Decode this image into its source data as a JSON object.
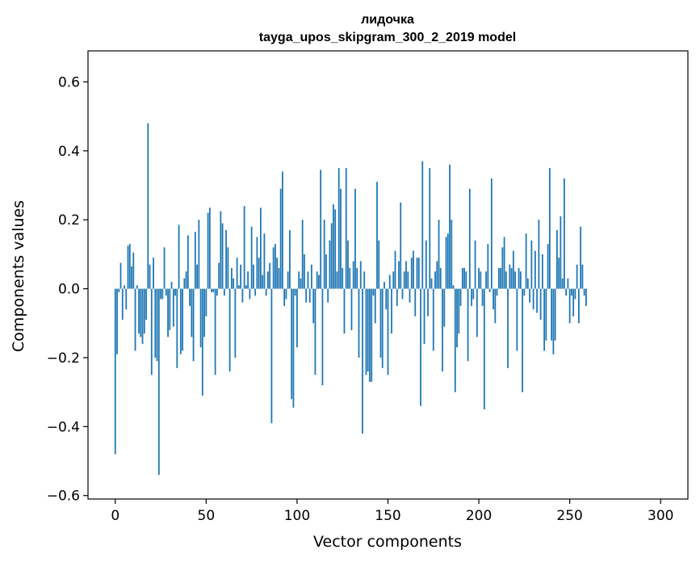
{
  "chart_data": {
    "type": "bar",
    "title_lines": [
      "лидочка",
      "tayga_upos_skipgram_300_2_2019 model"
    ],
    "xlabel": "Vector components",
    "ylabel": "Components values",
    "xlim": [
      -15,
      315
    ],
    "ylim": [
      -0.61,
      0.69
    ],
    "xticks": [
      0,
      50,
      100,
      150,
      200,
      250,
      300
    ],
    "xtick_labels": [
      "0",
      "50",
      "100",
      "150",
      "200",
      "250",
      "300"
    ],
    "yticks": [
      -0.6,
      -0.4,
      -0.2,
      0.0,
      0.2,
      0.4,
      0.6
    ],
    "ytick_labels": [
      "−0.6",
      "−0.4",
      "−0.2",
      "0.0",
      "0.2",
      "0.4",
      "0.6"
    ],
    "bar_color": "#1f77b4",
    "grid": false,
    "values": [
      -0.48,
      -0.19,
      -0.01,
      0.075,
      -0.09,
      0.01,
      -0.06,
      0.125,
      0.13,
      0.065,
      0.105,
      -0.18,
      0.01,
      -0.13,
      -0.14,
      -0.16,
      -0.13,
      -0.09,
      0.48,
      0.07,
      -0.25,
      0.09,
      -0.2,
      -0.21,
      -0.54,
      -0.03,
      -0.03,
      0.12,
      -0.02,
      -0.14,
      -0.12,
      0.02,
      -0.11,
      -0.02,
      -0.23,
      0.185,
      -0.19,
      -0.18,
      0.03,
      0.05,
      0.155,
      -0.05,
      -0.14,
      -0.21,
      0.165,
      0.07,
      0.2,
      -0.17,
      -0.31,
      -0.14,
      -0.08,
      0.22,
      0.235,
      -0.01,
      -0.01,
      -0.25,
      -0.02,
      0.075,
      0.225,
      0.19,
      -0.02,
      0.17,
      0.12,
      -0.24,
      0.06,
      0.03,
      -0.2,
      0.09,
      0.01,
      0.07,
      -0.04,
      0.24,
      0.01,
      0.05,
      -0.03,
      0.18,
      0.07,
      -0.02,
      0.15,
      0.09,
      0.235,
      0.04,
      0.16,
      -0.02,
      0.05,
      0.075,
      -0.39,
      0.12,
      0.13,
      0.09,
      0.06,
      0.29,
      0.34,
      -0.05,
      -0.03,
      0.05,
      0.17,
      -0.32,
      -0.345,
      -0.02,
      -0.17,
      0.05,
      0.03,
      0.2,
      0.1,
      -0.04,
      0.05,
      -0.04,
      0.07,
      -0.1,
      -0.25,
      0.05,
      0.04,
      0.345,
      -0.28,
      0.2,
      0.1,
      -0.04,
      0.14,
      0.19,
      0.245,
      0.23,
      0.05,
      0.35,
      0.29,
      0.06,
      -0.13,
      0.35,
      0.14,
      0.06,
      -0.12,
      0.08,
      0.29,
      0.06,
      -0.2,
      0.08,
      -0.42,
      0.05,
      -0.25,
      -0.24,
      -0.27,
      -0.27,
      -0.02,
      -0.1,
      0.31,
      0.14,
      -0.2,
      -0.23,
      0.02,
      -0.06,
      -0.25,
      0.04,
      -0.13,
      0.05,
      0.11,
      -0.05,
      0.08,
      0.25,
      -0.03,
      0.05,
      0.08,
      0.05,
      -0.04,
      0.09,
      0.11,
      -0.08,
      0.09,
      0.09,
      -0.34,
      0.37,
      -0.16,
      0.14,
      -0.08,
      0.35,
      0.03,
      -0.18,
      0.05,
      0.08,
      0.2,
      0.06,
      -0.24,
      -0.11,
      0.15,
      0.16,
      0.36,
      0.2,
      0.01,
      -0.3,
      -0.17,
      -0.13,
      -0.05,
      0.06,
      0.06,
      0.05,
      -0.21,
      0.29,
      -0.05,
      -0.03,
      0.14,
      -0.14,
      0.06,
      0.05,
      -0.05,
      -0.35,
      0.05,
      0.13,
      -0.01,
      0.32,
      -0.06,
      -0.1,
      -0.02,
      0.06,
      0.06,
      0.12,
      0.15,
      0.05,
      -0.23,
      0.07,
      0.06,
      0.11,
      0.05,
      -0.18,
      0.06,
      0.05,
      -0.3,
      -0.02,
      0.16,
      0.03,
      -0.04,
      0.14,
      -0.06,
      0.11,
      -0.07,
      0.2,
      -0.09,
      0.1,
      -0.18,
      -0.15,
      0.13,
      0.35,
      -0.15,
      -0.19,
      -0.15,
      0.17,
      0.09,
      0.21,
      0.03,
      0.32,
      -0.02,
      0.03,
      -0.1,
      -0.02,
      -0.08,
      -0.03,
      0.07,
      -0.1,
      0.18,
      0.07,
      -0.02,
      -0.05
    ]
  }
}
